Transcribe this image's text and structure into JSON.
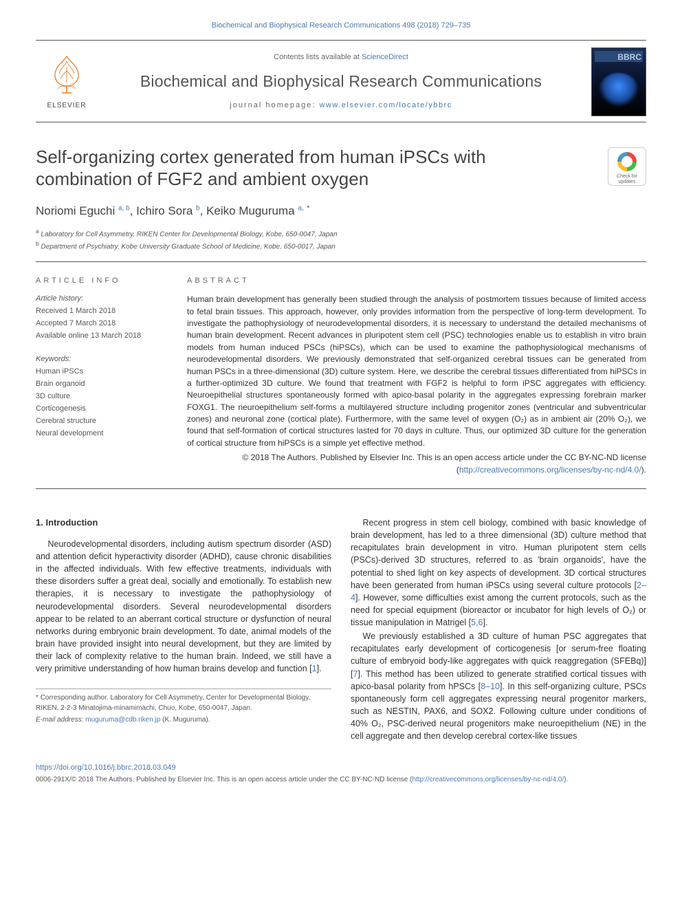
{
  "running_head": "Biochemical and Biophysical Research Communications 498 (2018) 729–735",
  "masthead": {
    "contents_prefix": "Contents lists available at ",
    "contents_link": "ScienceDirect",
    "journal": "Biochemical and Biophysical Research Communications",
    "homepage_label": "journal homepage: ",
    "homepage_url": "www.elsevier.com/locate/ybbrc",
    "publisher_word": "ELSEVIER",
    "cover_abbrev": "BBRC"
  },
  "crossmark": {
    "line1": "Check for",
    "line2": "updates"
  },
  "article": {
    "title": "Self-organizing cortex generated from human iPSCs with combination of FGF2 and ambient oxygen",
    "authors_html": "Noriomi Eguchi <sup>a, b</sup>, Ichiro Sora <sup>b</sup>, Keiko Muguruma <sup>a,</sup> <sup class='sup-star'>*</sup>",
    "affiliations": [
      {
        "sup": "a",
        "text": "Laboratory for Cell Asymmetry, RIKEN Center for Developmental Biology, Kobe, 650-0047, Japan"
      },
      {
        "sup": "b",
        "text": "Department of Psychiatry, Kobe University Graduate School of Medicine, Kobe, 650-0017, Japan"
      }
    ]
  },
  "article_info": {
    "heading": "ARTICLE INFO",
    "history_label": "Article history:",
    "received": "Received 1 March 2018",
    "accepted": "Accepted 7 March 2018",
    "online": "Available online 13 March 2018",
    "keywords_label": "Keywords:",
    "keywords": [
      "Human iPSCs",
      "Brain organoid",
      "3D culture",
      "Corticogenesis",
      "Cerebral structure",
      "Neural development"
    ]
  },
  "abstract": {
    "heading": "ABSTRACT",
    "text": "Human brain development has generally been studied through the analysis of postmortem tissues because of limited access to fetal brain tissues. This approach, however, only provides information from the perspective of long-term development. To investigate the pathophysiology of neurodevelopmental disorders, it is necessary to understand the detailed mechanisms of human brain development. Recent advances in pluripotent stem cell (PSC) technologies enable us to establish in vitro brain models from human induced PSCs (hiPSCs), which can be used to examine the pathophysiological mechanisms of neurodevelopmental disorders. We previously demonstrated that self-organized cerebral tissues can be generated from human PSCs in a three-dimensional (3D) culture system. Here, we describe the cerebral tissues differentiated from hiPSCs in a further-optimized 3D culture. We found that treatment with FGF2 is helpful to form iPSC aggregates with efficiency. Neuroepithelial structures spontaneously formed with apico-basal polarity in the aggregates expressing forebrain marker FOXG1. The neuroepithelium self-forms a multilayered structure including progenitor zones (ventricular and subventricular zones) and neuronal zone (cortical plate). Furthermore, with the same level of oxygen (O₂) as in ambient air (20% O₂), we found that self-formation of cortical structures lasted for 70 days in culture. Thus, our optimized 3D culture for the generation of cortical structure from hiPSCs is a simple yet effective method.",
    "copyright": "© 2018 The Authors. Published by Elsevier Inc. This is an open access article under the CC BY-NC-ND license (",
    "license_url": "http://creativecommons.org/licenses/by-nc-nd/4.0/",
    "copyright_close": ")."
  },
  "body": {
    "section_heading": "1. Introduction",
    "p1": "Neurodevelopmental disorders, including autism spectrum disorder (ASD) and attention deficit hyperactivity disorder (ADHD), cause chronic disabilities in the affected individuals. With few effective treatments, individuals with these disorders suffer a great deal, socially and emotionally. To establish new therapies, it is necessary to investigate the pathophysiology of neurodevelopmental disorders. Several neurodevelopmental disorders appear to be related to an aberrant cortical structure or dysfunction of neural networks during embryonic brain development. To date, animal models of the brain have provided insight into neural development, but they are limited by their lack of complexity relative to the human brain. Indeed, we still have a very primitive understanding of how human brains develop and function [",
    "p1_cite": "1",
    "p1_end": "].",
    "p2": "Recent progress in stem cell biology, combined with basic knowledge of brain development, has led to a three dimensional (3D) culture method that recapitulates brain development in vitro. Human pluripotent stem cells (PSCs)-derived 3D structures, referred to as 'brain organoids', have the potential to shed light on key aspects of development. 3D cortical structures have been generated from human iPSCs using several culture protocols [",
    "p2_cite": "2–4",
    "p2_mid": "]. However, some difficulties exist among the current protocols, such as the need for special equipment (bioreactor or incubator for high levels of O₂) or tissue manipulation in Matrigel [",
    "p2_cite2": "5,6",
    "p2_end": "].",
    "p3": "We previously established a 3D culture of human PSC aggregates that recapitulates early development of corticogenesis [or serum-free floating culture of embryoid body-like aggregates with quick reaggregation (SFEBq)] [",
    "p3_cite": "7",
    "p3_mid": "]. This method has been utilized to generate stratified cortical tissues with apico-basal polarity from hPSCs [",
    "p3_cite2": "8–10",
    "p3_end": "]. In this self-organizing culture, PSCs spontaneously form cell aggregates expressing neural progenitor markers, such as NESTIN, PAX6, and SOX2. Following culture under conditions of 40% O₂, PSC-derived neural progenitors make neuroepithelium (NE) in the cell aggregate and then develop cerebral cortex-like tissues"
  },
  "correspondence": {
    "star": "*",
    "text": "Corresponding author. Laboratory for Cell Asymmetry, Center for Developmental Biology, RIKEN, 2-2-3 Minatojima-minamimachi, Chuo, Kobe, 650-0047, Japan.",
    "email_label": "E-mail address: ",
    "email": "muguruma@cdb.riken.jp",
    "email_suffix": " (K. Muguruma)."
  },
  "footer": {
    "doi": "https://doi.org/10.1016/j.bbrc.2018.03.049",
    "copyright": "0006-291X/© 2018 The Authors. Published by Elsevier Inc. This is an open access article under the CC BY-NC-ND license (",
    "license_url": "http://creativecommons.org/licenses/by-nc-nd/4.0/",
    "copyright_close": ")."
  },
  "colors": {
    "link": "#4a7ab0",
    "text": "#333333",
    "muted": "#555555",
    "rule": "#555555"
  },
  "typography": {
    "body_pt": 12.5,
    "title_pt": 26,
    "journal_pt": 23,
    "authors_pt": 17,
    "small_pt": 11,
    "tiny_pt": 10
  }
}
